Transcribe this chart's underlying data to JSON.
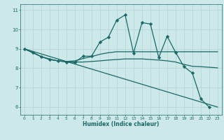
{
  "xlabel": "Humidex (Indice chaleur)",
  "bg_color": "#cce8e8",
  "grid_color": "#b8d4d4",
  "line_color": "#1a6868",
  "xlim": [
    -0.5,
    23.5
  ],
  "ylim": [
    5.6,
    11.3
  ],
  "xticks": [
    0,
    1,
    2,
    3,
    4,
    5,
    6,
    7,
    8,
    9,
    10,
    11,
    12,
    13,
    14,
    15,
    16,
    17,
    18,
    19,
    20,
    21,
    22,
    23
  ],
  "yticks": [
    6,
    7,
    8,
    9,
    10,
    11
  ],
  "curves": [
    {
      "x": [
        0,
        1,
        2,
        3,
        4,
        5,
        6,
        7,
        8,
        9,
        10,
        11,
        12,
        13,
        14,
        15,
        16,
        17,
        18,
        19,
        20,
        21,
        22
      ],
      "y": [
        9.0,
        8.82,
        8.6,
        8.45,
        8.38,
        8.32,
        8.3,
        8.62,
        8.62,
        9.35,
        9.6,
        10.48,
        10.75,
        8.78,
        10.35,
        10.28,
        8.55,
        9.65,
        8.82,
        8.08,
        7.75,
        6.42,
        6.0
      ],
      "marker": "D",
      "markersize": 2.2,
      "linewidth": 0.9,
      "has_marker": true
    },
    {
      "x": [
        0,
        2,
        3,
        4,
        5,
        6,
        7,
        8,
        9,
        10,
        11,
        12,
        13,
        14,
        15,
        16,
        17,
        18,
        19,
        20,
        21,
        22,
        23
      ],
      "y": [
        9.0,
        8.6,
        8.48,
        8.38,
        8.35,
        8.38,
        8.5,
        8.6,
        8.72,
        8.8,
        8.85,
        8.85,
        8.85,
        8.85,
        8.85,
        8.85,
        8.85,
        8.85,
        8.85,
        8.85,
        8.85,
        8.85,
        8.85
      ],
      "marker": null,
      "markersize": 0,
      "linewidth": 0.9,
      "has_marker": false
    },
    {
      "x": [
        0,
        2,
        3,
        4,
        5,
        6,
        7,
        8,
        9,
        10,
        11,
        12,
        13,
        14,
        15,
        16,
        17,
        18,
        19,
        20,
        21,
        22,
        23
      ],
      "y": [
        9.0,
        8.6,
        8.45,
        8.38,
        8.35,
        8.32,
        8.32,
        8.35,
        8.38,
        8.42,
        8.45,
        8.48,
        8.48,
        8.48,
        8.45,
        8.42,
        8.38,
        8.32,
        8.2,
        8.1,
        8.08,
        8.05,
        8.02
      ],
      "marker": null,
      "markersize": 0,
      "linewidth": 0.9,
      "has_marker": false
    },
    {
      "x": [
        0,
        23
      ],
      "y": [
        9.0,
        6.0
      ],
      "marker": null,
      "markersize": 0,
      "linewidth": 0.9,
      "has_marker": false
    }
  ]
}
